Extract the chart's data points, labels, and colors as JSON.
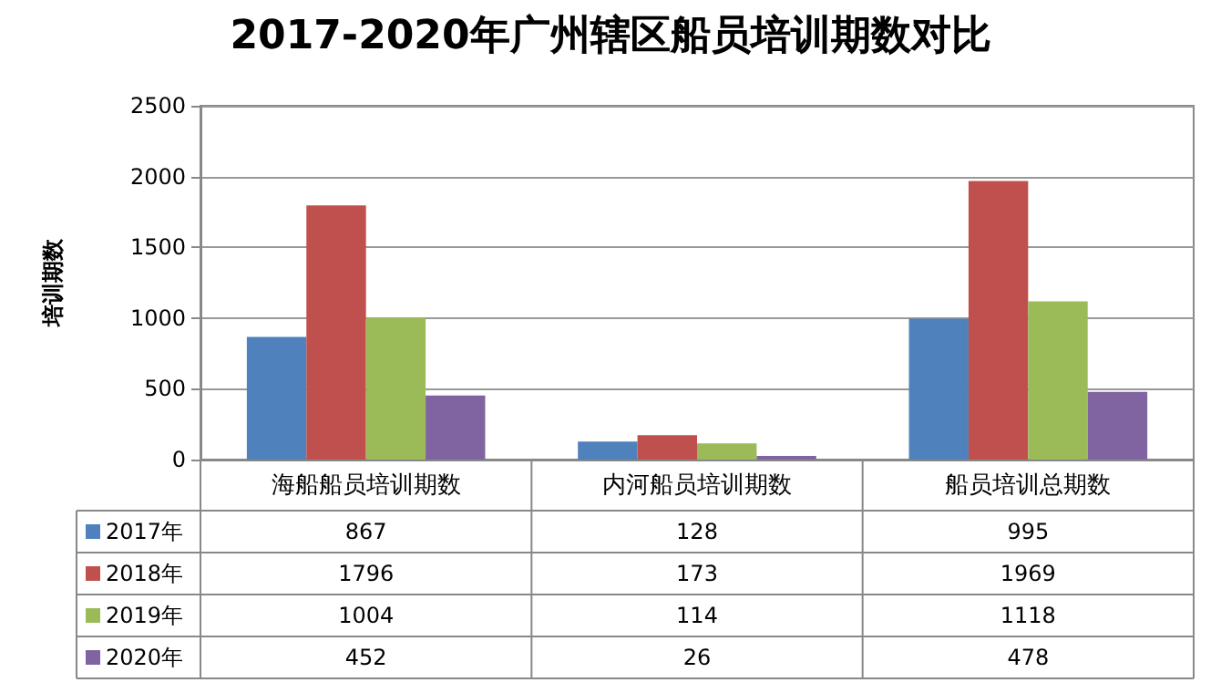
{
  "chart_data": {
    "type": "bar",
    "title": "2017-2020年广州辖区船员培训期数对比",
    "ylabel": "培训期数",
    "categories": [
      "海船船员培训期数",
      "内河船员培训期数",
      "船员培训总期数"
    ],
    "series": [
      {
        "name": "2017年",
        "color": "#4f81bd",
        "values": [
          867,
          128,
          995
        ]
      },
      {
        "name": "2018年",
        "color": "#c0504d",
        "values": [
          1796,
          173,
          1969
        ]
      },
      {
        "name": "2019年",
        "color": "#9bbb59",
        "values": [
          1004,
          114,
          1118
        ]
      },
      {
        "name": "2020年",
        "color": "#8064a2",
        "values": [
          452,
          26,
          478
        ]
      }
    ],
    "ylim": [
      0,
      2500
    ],
    "yticks": [
      0,
      500,
      1000,
      1500,
      2000,
      2500
    ],
    "grid": "y",
    "legend": "bottom left",
    "data_labels": true
  }
}
